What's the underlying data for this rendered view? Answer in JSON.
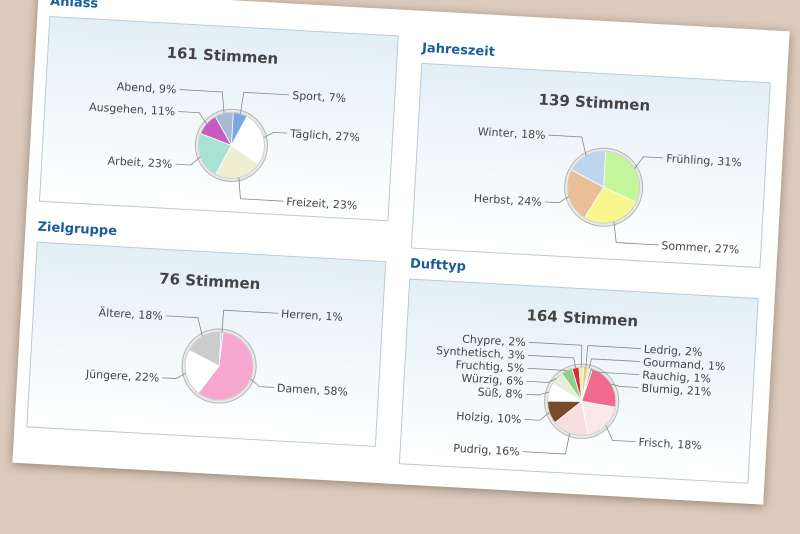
{
  "chart_data": [
    {
      "type": "pie",
      "section": "Anlass",
      "title": "161 Stimmen",
      "slices": [
        {
          "label": "Sport",
          "value": 7,
          "color": "#7aa7e8"
        },
        {
          "label": "Täglich",
          "value": 27,
          "color": "#ffffff"
        },
        {
          "label": "Freizeit",
          "value": 23,
          "color": "#f0eed0"
        },
        {
          "label": "Arbeit",
          "value": 23,
          "color": "#a8e2d3"
        },
        {
          "label": "Ausgehen",
          "value": 11,
          "color": "#c65cc0"
        },
        {
          "label": "Abend",
          "value": 9,
          "color": "#a7b9d3"
        }
      ]
    },
    {
      "type": "pie",
      "section": "Jahreszeit",
      "title": "139 Stimmen",
      "slices": [
        {
          "label": "Frühling",
          "value": 31,
          "color": "#c4f59a"
        },
        {
          "label": "Sommer",
          "value": 27,
          "color": "#f7f78e"
        },
        {
          "label": "Herbst",
          "value": 24,
          "color": "#eabf98"
        },
        {
          "label": "Winter",
          "value": 18,
          "color": "#bdd6ee"
        }
      ]
    },
    {
      "type": "pie",
      "section": "Zielgruppe",
      "title": "76 Stimmen",
      "slices": [
        {
          "label": "Herren",
          "value": 1,
          "color": "#a9c8ea"
        },
        {
          "label": "Damen",
          "value": 58,
          "color": "#f7a6cf"
        },
        {
          "label": "Jüngere",
          "value": 22,
          "color": "#ffffff"
        },
        {
          "label": "Ältere",
          "value": 18,
          "color": "#cccccc"
        }
      ]
    },
    {
      "type": "pie",
      "section": "Dufttyp",
      "title": "164 Stimmen",
      "slices": [
        {
          "label": "Ledrig",
          "value": 2,
          "color": "#e8d06e"
        },
        {
          "label": "Gourmand",
          "value": 1,
          "color": "#d9d9ee"
        },
        {
          "label": "Rauchig",
          "value": 1,
          "color": "#9a9a9a"
        },
        {
          "label": "Blumig",
          "value": 21,
          "color": "#f06a8d"
        },
        {
          "label": "Frisch",
          "value": 18,
          "color": "#fbe8e8"
        },
        {
          "label": "Pudrig",
          "value": 16,
          "color": "#f5dede"
        },
        {
          "label": "Holzig",
          "value": 10,
          "color": "#7a4a2a"
        },
        {
          "label": "Süß",
          "value": 8,
          "color": "#ffffff"
        },
        {
          "label": "Würzig",
          "value": 6,
          "color": "#e6eed8"
        },
        {
          "label": "Fruchtig",
          "value": 5,
          "color": "#8fcf8a"
        },
        {
          "label": "Synthetisch",
          "value": 3,
          "color": "#d23030"
        },
        {
          "label": "Chypre",
          "value": 2,
          "color": "#f3e9b0"
        }
      ]
    }
  ]
}
